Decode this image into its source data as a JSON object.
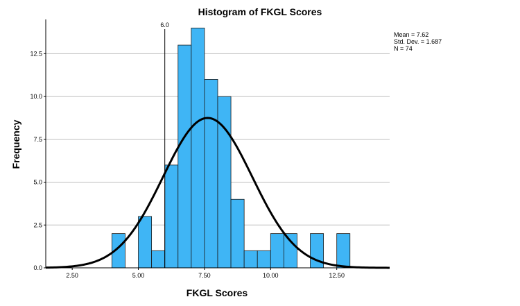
{
  "chart_data": {
    "type": "bar",
    "title": "Histogram of FKGL Scores",
    "xlabel": "FKGL Scores",
    "ylabel": "Frequency",
    "xlim": [
      1.5,
      14.5
    ],
    "ylim": [
      0,
      14.5
    ],
    "x_ticks": [
      2.5,
      5.0,
      7.5,
      10.0,
      12.5
    ],
    "x_tick_labels": [
      "2.50",
      "5.00",
      "7.50",
      "10.00",
      "12.50"
    ],
    "y_ticks": [
      0,
      2.5,
      5.0,
      7.5,
      10.0,
      12.5
    ],
    "y_tick_labels": [
      "0.0",
      "2.5",
      "5.0",
      "7.5",
      "10.0",
      "12.5"
    ],
    "bin_width": 0.5,
    "bins": [
      {
        "start": 4.0,
        "count": 2
      },
      {
        "start": 5.0,
        "count": 3
      },
      {
        "start": 5.5,
        "count": 1
      },
      {
        "start": 6.0,
        "count": 6
      },
      {
        "start": 6.5,
        "count": 13
      },
      {
        "start": 7.0,
        "count": 14
      },
      {
        "start": 7.5,
        "count": 11
      },
      {
        "start": 8.0,
        "count": 10
      },
      {
        "start": 8.5,
        "count": 4
      },
      {
        "start": 9.0,
        "count": 1
      },
      {
        "start": 9.5,
        "count": 1
      },
      {
        "start": 10.0,
        "count": 2
      },
      {
        "start": 10.5,
        "count": 2
      },
      {
        "start": 11.5,
        "count": 2
      },
      {
        "start": 12.5,
        "count": 2
      }
    ],
    "normal_curve": {
      "mean": 7.62,
      "sd": 1.687,
      "n": 74
    },
    "reference_line": {
      "x": 6.0,
      "label": "6.0"
    },
    "stats_labels": [
      "Mean = 7.62",
      "Std. Dev. = 1.687",
      "N = 74"
    ],
    "grid": true
  }
}
